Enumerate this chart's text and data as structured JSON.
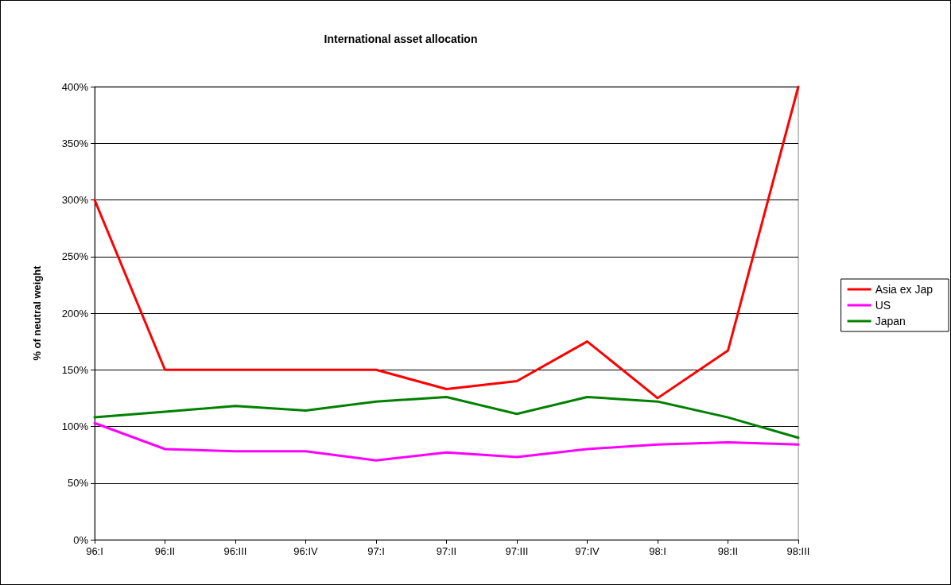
{
  "chart_data": {
    "type": "line",
    "title": "International asset allocation",
    "ylabel": "% of neutral weight",
    "categories": [
      "96:I",
      "96:II",
      "96:III",
      "96:IV",
      "97:I",
      "97:II",
      "97:III",
      "97:IV",
      "98:I",
      "98:II",
      "98:III"
    ],
    "series": [
      {
        "name": "Asia ex Jap",
        "color": "#ff0000",
        "values": [
          300,
          150,
          150,
          150,
          150,
          133,
          140,
          175,
          125,
          167,
          400
        ]
      },
      {
        "name": "US",
        "color": "#ff00ff",
        "values": [
          103,
          80,
          78,
          78,
          70,
          77,
          73,
          80,
          84,
          86,
          84
        ]
      },
      {
        "name": "Japan",
        "color": "#008000",
        "values": [
          108,
          113,
          118,
          114,
          122,
          126,
          111,
          126,
          122,
          108,
          90
        ]
      }
    ],
    "ylim": [
      0,
      400
    ],
    "yticks": [
      {
        "value": 0,
        "label": "0%"
      },
      {
        "value": 50,
        "label": "50%"
      },
      {
        "value": 100,
        "label": "100%"
      },
      {
        "value": 150,
        "label": "150%"
      },
      {
        "value": 200,
        "label": "200%"
      },
      {
        "value": 250,
        "label": "250%"
      },
      {
        "value": 300,
        "label": "300%"
      },
      {
        "value": 350,
        "label": "350%"
      },
      {
        "value": 400,
        "label": "400%"
      }
    ],
    "grid": "y",
    "legend": "right",
    "marker": "none",
    "line_style": "solid"
  }
}
